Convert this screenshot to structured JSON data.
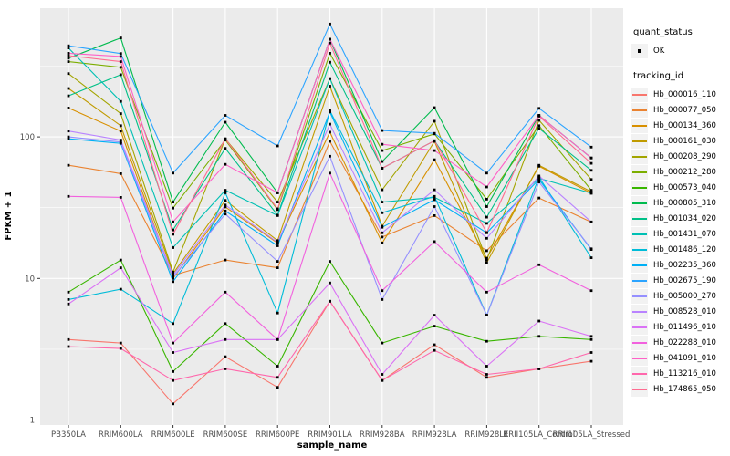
{
  "chart_data": {
    "type": "line",
    "xlabel": "sample_name",
    "ylabel": "FPKM + 1",
    "y_scale": "log10",
    "ylim": [
      1,
      800
    ],
    "y_major_ticks": [
      1,
      10,
      100
    ],
    "y_minor_ticks": [
      3.162,
      31.62,
      316.2
    ],
    "grid": true,
    "legend_position": "right",
    "point_shape": "small black square",
    "point_color": "#000000",
    "categories": [
      "PB350LA",
      "RRIM600LA",
      "RRIM600LE",
      "RRIM600SE",
      "RRIM600PE",
      "RRIM901LA",
      "RRIM928BA",
      "RRIM928LA",
      "RRIM928LE",
      "RRII105LA_Control",
      "RRII105LA_Stressed"
    ],
    "series": [
      {
        "name": "Hb_000016_110",
        "color": "#F8766D",
        "values": [
          3.7,
          3.5,
          1.3,
          2.8,
          1.7,
          6.9,
          1.9,
          3.4,
          2.0,
          2.3,
          2.6
        ]
      },
      {
        "name": "Hb_000077_050",
        "color": "#EA8331",
        "values": [
          63,
          55,
          10.5,
          13.5,
          11.9,
          93,
          19.6,
          27.8,
          15.7,
          37,
          25
        ]
      },
      {
        "name": "Hb_000134_360",
        "color": "#D89000",
        "values": [
          160,
          110,
          10.0,
          32,
          17.8,
          108,
          17.8,
          69,
          13.9,
          62,
          40
        ]
      },
      {
        "name": "Hb_000161_030",
        "color": "#C09B00",
        "values": [
          220,
          120,
          10.8,
          35.6,
          18.5,
          228,
          23.4,
          93,
          12.9,
          63,
          41
        ]
      },
      {
        "name": "Hb_000208_290",
        "color": "#A3A500",
        "values": [
          280,
          146,
          11.1,
          97,
          34.6,
          258,
          42.3,
          129,
          13.5,
          131,
          50
        ]
      },
      {
        "name": "Hb_000212_280",
        "color": "#7CAE00",
        "values": [
          340,
          310,
          31.4,
          95,
          30.6,
          390,
          80,
          105,
          36.3,
          120,
          42
        ]
      },
      {
        "name": "Hb_000573_040",
        "color": "#39B600",
        "values": [
          8.0,
          13.5,
          2.2,
          4.8,
          2.4,
          13.2,
          3.5,
          4.6,
          3.6,
          3.9,
          3.7
        ]
      },
      {
        "name": "Hb_000805_310",
        "color": "#00BB4E",
        "values": [
          360,
          500,
          34.6,
          127,
          40.3,
          490,
          67,
          161,
          32.2,
          142,
          71
        ]
      },
      {
        "name": "Hb_001034_020",
        "color": "#00C087",
        "values": [
          195,
          275,
          22,
          83,
          28,
          337,
          60,
          94,
          27.1,
          115,
          58
        ]
      },
      {
        "name": "Hb_001431_070",
        "color": "#00C0B4",
        "values": [
          425,
          178,
          16.5,
          42,
          27.8,
          258,
          34.6,
          37.4,
          24.5,
          51,
          40
        ]
      },
      {
        "name": "Hb_001486_120",
        "color": "#00BCD8",
        "values": [
          7.1,
          8.4,
          4.8,
          40.3,
          5.7,
          153,
          29.1,
          38,
          5.5,
          52,
          14
        ]
      },
      {
        "name": "Hb_002235_360",
        "color": "#00B0F6",
        "values": [
          97,
          90,
          9.5,
          30,
          17,
          150,
          23,
          36,
          21,
          50,
          16
        ]
      },
      {
        "name": "Hb_002675_190",
        "color": "#2CA4FF",
        "values": [
          440,
          388,
          55.5,
          142,
          86.4,
          628,
          111,
          106,
          55.5,
          159,
          84.7
        ]
      },
      {
        "name": "Hb_005000_270",
        "color": "#9590FF",
        "values": [
          100,
          92,
          10.2,
          28.5,
          13.2,
          73,
          7.1,
          32.2,
          5.5,
          48,
          16.2
        ]
      },
      {
        "name": "Hb_008528_010",
        "color": "#B983FF",
        "values": [
          110,
          95,
          10.5,
          33,
          18,
          123,
          21,
          42.3,
          19.2,
          53,
          25.1
        ]
      },
      {
        "name": "Hb_011496_010",
        "color": "#DA72F5",
        "values": [
          6.6,
          11.9,
          3.0,
          3.7,
          3.7,
          9.3,
          2.1,
          5.5,
          2.4,
          5.0,
          3.9
        ]
      },
      {
        "name": "Hb_022288_010",
        "color": "#F261DE",
        "values": [
          38,
          37.4,
          3.5,
          8.0,
          3.7,
          55.5,
          8.2,
          18.2,
          8.0,
          12.5,
          8.2
        ]
      },
      {
        "name": "Hb_041091_010",
        "color": "#FF61C7",
        "values": [
          390,
          370,
          25.1,
          64,
          40.3,
          490,
          88.7,
          80,
          44.3,
          142,
          71
        ]
      },
      {
        "name": "Hb_113216_010",
        "color": "#FF67AC",
        "values": [
          3.3,
          3.2,
          1.9,
          2.3,
          2.0,
          6.9,
          1.9,
          3.1,
          2.1,
          2.3,
          3.0
        ]
      },
      {
        "name": "Hb_174865_050",
        "color": "#FF6C91",
        "values": [
          375,
          340,
          20.5,
          97,
          31,
          460,
          60,
          94,
          21.1,
          140,
          65
        ]
      }
    ]
  },
  "legend": {
    "quant_title": "quant_status",
    "quant_items": [
      {
        "label": "OK"
      }
    ],
    "tracking_title": "tracking_id"
  },
  "colors": {
    "panel_bg": "#EBEBEB",
    "grid_major": "#FFFFFF",
    "grid_minor": "#FFFFFF",
    "tick_mark": "#333333",
    "tick_label": "#4D4D4D",
    "key_bg": "#F2F2F2"
  },
  "y_tick_labels": [
    "1",
    "10",
    "100"
  ]
}
